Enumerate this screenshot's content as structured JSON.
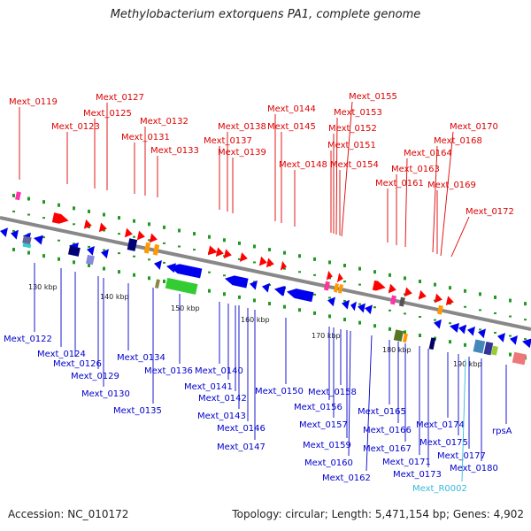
{
  "title": "Methylobacterium extorquens PA1, complete genome",
  "footer": {
    "accession": "Accession: NC_010172",
    "summary": "Topology: circular; Length: 5,471,154 bp; Genes: 4,902"
  },
  "colors": {
    "forward_label": "#dd0000",
    "reverse_label": "#0000cc",
    "rna_label": "#33bbdd",
    "backbone": "#888888",
    "tick": "#229922"
  },
  "kbp_labels": [
    "130 kbp",
    "140 kbp",
    "150 kbp",
    "160 kbp",
    "170 kbp",
    "180 kbp",
    "190 kbp"
  ],
  "forward_genes": [
    "Mext_0119",
    "Mext_0123",
    "Mext_0125",
    "Mext_0127",
    "Mext_0131",
    "Mext_0132",
    "Mext_0133",
    "Mext_0137",
    "Mext_0138",
    "Mext_0139",
    "Mext_0144",
    "Mext_0145",
    "Mext_0148",
    "Mext_0151",
    "Mext_0152",
    "Mext_0153",
    "Mext_0154",
    "Mext_0155",
    "Mext_0161",
    "Mext_0163",
    "Mext_0164",
    "Mext_0168",
    "Mext_0169",
    "Mext_0170",
    "Mext_0172"
  ],
  "reverse_genes": [
    "Mext_0122",
    "Mext_0124",
    "Mext_0126",
    "Mext_0129",
    "Mext_0130",
    "Mext_0134",
    "Mext_0135",
    "Mext_0136",
    "Mext_0140",
    "Mext_0141",
    "Mext_0142",
    "Mext_0143",
    "Mext_0146",
    "Mext_0147",
    "Mext_0150",
    "Mext_0156",
    "Mext_0157",
    "Mext_0158",
    "Mext_0159",
    "Mext_0160",
    "Mext_0162",
    "Mext_0165",
    "Mext_0166",
    "Mext_0167",
    "Mext_0171",
    "Mext_0173",
    "Mext_0174",
    "Mext_0175",
    "Mext_0177",
    "Mext_0180",
    "rpsA"
  ],
  "rna_genes": [
    "Mext_R0002"
  ]
}
